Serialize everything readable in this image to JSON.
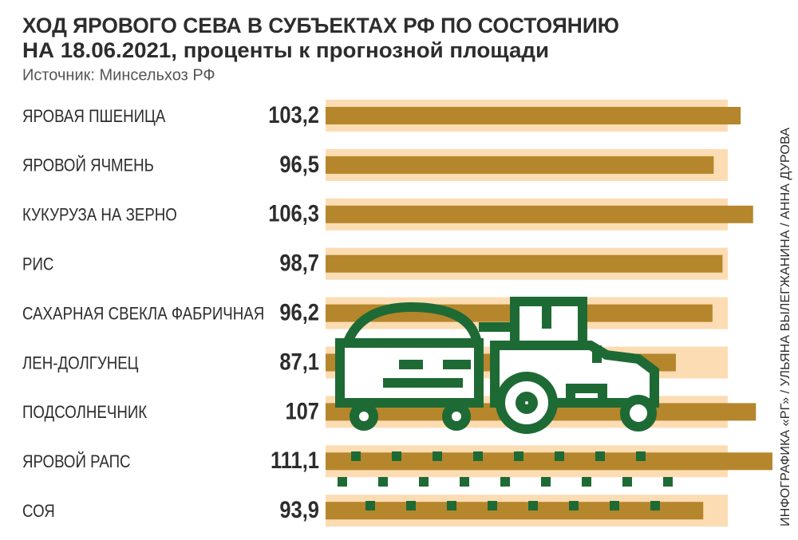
{
  "chart_data": {
    "type": "bar",
    "title": "ХОД ЯРОВОГО СЕВА В СУБЪЕКТАХ РФ ПО СОСТОЯНИЮ",
    "subtitle": "НА 18.06.2021, проценты к прогнозной площади",
    "source": "Источник:  Минсельхоз РФ",
    "credit": "ИНФОГРАФИКА «РГ» / УЛЬЯНА ВЫЛЕГЖАНИНА / АННА ДУРОВА",
    "categories": [
      "ЯРОВАЯ ПШЕНИЦА",
      "ЯРОВОЙ ЯЧМЕНЬ",
      "КУКУРУЗА НА ЗЕРНО",
      "РИС",
      "САХАРНАЯ СВЕКЛА ФАБРИЧНАЯ",
      "ЛЕН-ДОЛГУНЕЦ",
      "ПОДСОЛНЕЧНИК",
      "ЯРОВОЙ РАПС",
      "СОЯ"
    ],
    "values": [
      103.2,
      96.5,
      106.3,
      98.7,
      96.2,
      87.1,
      107,
      111.1,
      93.9
    ],
    "value_labels": [
      "103,2",
      "96,5",
      "106,3",
      "98,7",
      "96,2",
      "87,1",
      "107",
      "111,1",
      "93,9"
    ],
    "color": "#b5862b"
  }
}
